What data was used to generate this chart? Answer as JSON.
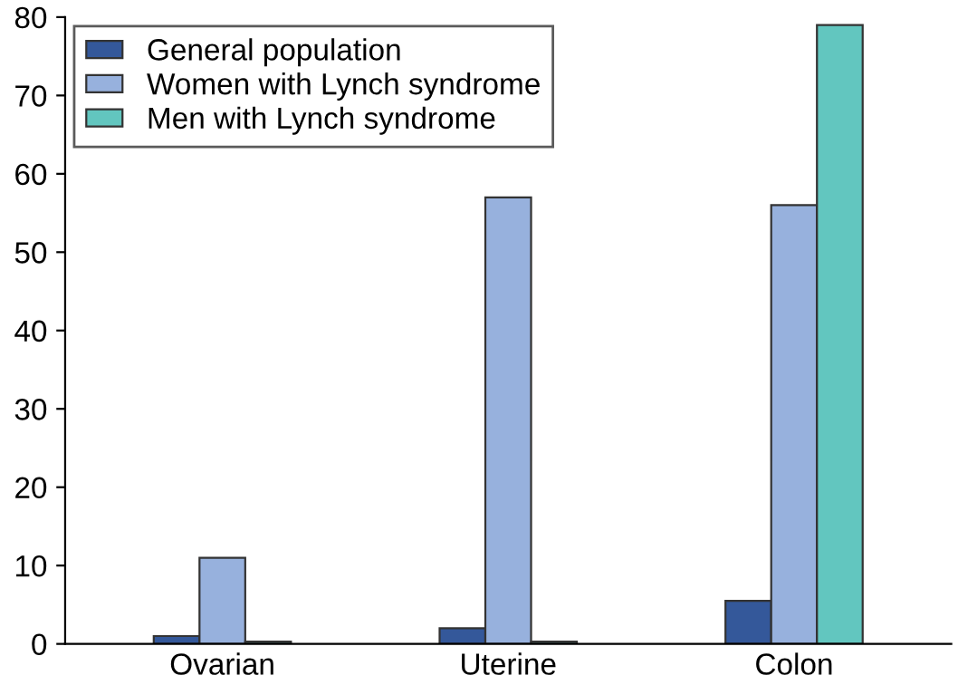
{
  "chart_data": {
    "type": "bar",
    "categories": [
      "Ovarian",
      "Uterine",
      "Colon"
    ],
    "series": [
      {
        "name": "General population",
        "color": "#34589a",
        "values": [
          1,
          2,
          5.5
        ]
      },
      {
        "name": "Women with Lynch syndrome",
        "color": "#97b1dd",
        "values": [
          11,
          57,
          56
        ]
      },
      {
        "name": "Men with Lynch syndrome",
        "color": "#62c6bf",
        "values": [
          0.3,
          0.3,
          79
        ]
      }
    ],
    "ylim": [
      0,
      80
    ],
    "yticks": [
      0,
      10,
      20,
      30,
      40,
      50,
      60,
      70,
      80
    ],
    "grid": false,
    "legend": "top left"
  }
}
